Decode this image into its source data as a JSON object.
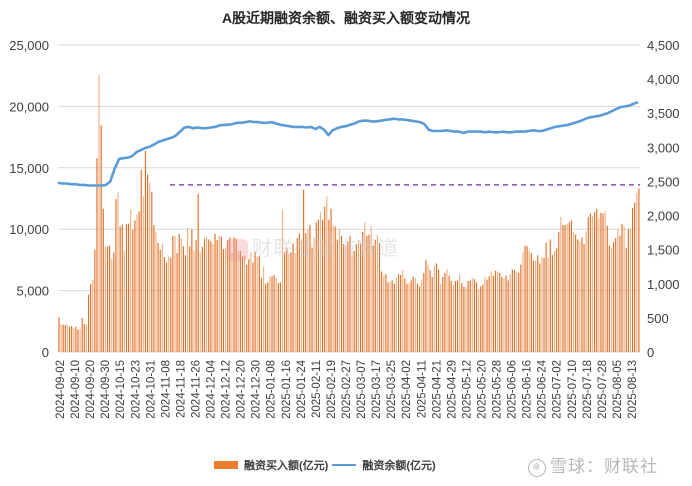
{
  "chart_data": {
    "type": "bar+line",
    "title": "A股近期融资余额、融资买入额变动情况",
    "xlabel": "",
    "ylabel_left": "融资买入额(亿元)",
    "ylabel_right": "融资余额(亿元)",
    "ylim_left": [
      0,
      25000
    ],
    "ylim_right": [
      0,
      4500
    ],
    "yticks_left": [
      "0",
      "5,000",
      "10,000",
      "15,000",
      "20,000",
      "25,000"
    ],
    "yticks_right": [
      "0",
      "500",
      "1,000",
      "1,500",
      "2,000",
      "2,500",
      "3,000",
      "3,500",
      "4,000",
      "4,500"
    ],
    "xtick_labels": [
      "2024-09-02",
      "2024-09-10",
      "2024-09-20",
      "2024-09-30",
      "2024-10-15",
      "2024-10-23",
      "2024-10-31",
      "2024-11-08",
      "2024-11-18",
      "2024-11-26",
      "2024-12-04",
      "2024-12-12",
      "2024-12-20",
      "2024-12-30",
      "2025-01-08",
      "2025-01-16",
      "2025-01-24",
      "2025-02-11",
      "2025-02-19",
      "2025-02-27",
      "2025-03-07",
      "2025-03-17",
      "2025-03-25",
      "2025-04-02",
      "2025-04-11",
      "2025-04-21",
      "2025-04-29",
      "2025-05-12",
      "2025-05-20",
      "2025-05-28",
      "2025-06-06",
      "2025-06-16",
      "2025-06-24",
      "2025-07-02",
      "2025-07-10",
      "2025-07-18",
      "2025-07-28",
      "2025-08-05",
      "2025-08-13"
    ],
    "grid": true,
    "legend_position": "bottom",
    "reference_line": {
      "axis": "right",
      "value": 2450,
      "style": "dashed",
      "color": "#7030A0",
      "from": "2024-11-08"
    },
    "series": [
      {
        "name": "融资买入额(亿元)",
        "type": "bar",
        "axis": "right",
        "color": "#ED7D31",
        "values": [
          510,
          410,
          400,
          395,
          400,
          370,
          380,
          350,
          370,
          330,
          340,
          500,
          410,
          400,
          840,
          1000,
          1060,
          1500,
          2840,
          4060,
          3320,
          2100,
          1540,
          1550,
          1560,
          1360,
          1460,
          2240,
          2340,
          1840,
          1870,
          1480,
          1870,
          1880,
          2090,
          1790,
          1930,
          2020,
          2060,
          2670,
          2280,
          2950,
          2600,
          2480,
          2350,
          1860,
          1760,
          1600,
          1500,
          1590,
          1390,
          1310,
          1400,
          1380,
          1700,
          1700,
          1450,
          1730,
          1660,
          1550,
          1420,
          1820,
          1550,
          1800,
          1480,
          1640,
          2320,
          1460,
          1540,
          1660,
          1690,
          1650,
          1620,
          1580,
          1730,
          1640,
          1700,
          1690,
          1510,
          1520,
          1640,
          1680,
          1450,
          1680,
          1660,
          1480,
          1480,
          1400,
          1410,
          1280,
          1360,
          1460,
          1310,
          1470,
          1400,
          1400,
          1080,
          1250,
          1000,
          1020,
          1100,
          1110,
          1130,
          1080,
          1010,
          1020,
          2080,
          1460,
          1520,
          1440,
          1460,
          1590,
          1450,
          1670,
          1740,
          1650,
          2380,
          1740,
          1800,
          1860,
          1530,
          1680,
          1900,
          1940,
          2050,
          1940,
          2130,
          2280,
          1940,
          2100,
          1850,
          1840,
          1650,
          1800,
          1700,
          1580,
          1550,
          1610,
          1700,
          1420,
          1480,
          1580,
          1640,
          1590,
          1760,
          1900,
          1700,
          1720,
          1840,
          1560,
          1640,
          1720,
          1600,
          1180,
          1120,
          1140,
          1020,
          1030,
          1050,
          1000,
          1090,
          1140,
          1130,
          1200,
          1080,
          1000,
          1010,
          1050,
          1100,
          1080,
          1000,
          960,
          1060,
          1160,
          1350,
          1280,
          1200,
          1100,
          1260,
          1300,
          1210,
          1000,
          1100,
          1160,
          1210,
          1120,
          1040,
          980,
          1040,
          1050,
          1140,
          1010,
          960,
          950,
          1040,
          1050,
          1090,
          1070,
          1020,
          920,
          960,
          990,
          1100,
          1060,
          1110,
          1180,
          1120,
          1190,
          1180,
          1160,
          1100,
          1080,
          1120,
          1050,
          1140,
          1210,
          1200,
          1180,
          1160,
          1280,
          1460,
          1560,
          1550,
          1480,
          1450,
          1340,
          1340,
          1420,
          1300,
          1390,
          1380,
          1600,
          1380,
          1650,
          1420,
          1480,
          1520,
          1760,
          1980,
          1860,
          1860,
          1880,
          1900,
          1930,
          1760,
          1720,
          1650,
          1620,
          1680,
          1580,
          1770,
          1980,
          2030,
          2000,
          2050,
          2100,
          1960,
          2040,
          2030,
          2070,
          1850,
          1560,
          1520,
          1610,
          1670,
          1810,
          1700,
          1880,
          1840,
          1520,
          1800,
          1810,
          2110,
          2190,
          2330,
          2400
        ]
      },
      {
        "name": "融资余额(亿元)",
        "type": "line",
        "axis": "right",
        "color": "#5B9BD5",
        "values": [
          2480,
          2470,
          2470,
          2460,
          2460,
          2450,
          2450,
          2440,
          2440,
          2440,
          2440,
          2450,
          2500,
          2690,
          2830,
          2840,
          2850,
          2870,
          2930,
          2960,
          2990,
          3010,
          3040,
          3080,
          3100,
          3120,
          3140,
          3170,
          3230,
          3290,
          3300,
          3280,
          3290,
          3280,
          3280,
          3290,
          3300,
          3320,
          3330,
          3330,
          3340,
          3360,
          3360,
          3370,
          3380,
          3370,
          3370,
          3360,
          3360,
          3370,
          3350,
          3330,
          3320,
          3310,
          3300,
          3300,
          3300,
          3290,
          3300,
          3270,
          3300,
          3260,
          3180,
          3250,
          3280,
          3300,
          3310,
          3330,
          3350,
          3380,
          3390,
          3390,
          3380,
          3380,
          3390,
          3400,
          3410,
          3420,
          3410,
          3410,
          3400,
          3390,
          3380,
          3370,
          3340,
          3260,
          3240,
          3240,
          3240,
          3250,
          3240,
          3230,
          3230,
          3210,
          3230,
          3230,
          3230,
          3230,
          3220,
          3230,
          3220,
          3220,
          3230,
          3220,
          3220,
          3230,
          3230,
          3230,
          3240,
          3250,
          3240,
          3240,
          3260,
          3280,
          3300,
          3310,
          3320,
          3330,
          3350,
          3370,
          3390,
          3420,
          3440,
          3450,
          3460,
          3480,
          3500,
          3530,
          3560,
          3590,
          3600,
          3610,
          3640,
          3660
        ]
      }
    ]
  },
  "legend": {
    "bar_label": "融资买入额(亿元)",
    "line_label": "融资余额(亿元)"
  },
  "watermarks": {
    "center": "财联社股市频道",
    "corner_logo": "※",
    "corner_text": "雪球：财联社"
  },
  "colors": {
    "bar_dark": "#E07028",
    "bar_light": "#F4B183",
    "line": "#5B9BD5",
    "reference": "#7030A0",
    "grid": "#D9D9D9",
    "axis_text": "#404040"
  }
}
